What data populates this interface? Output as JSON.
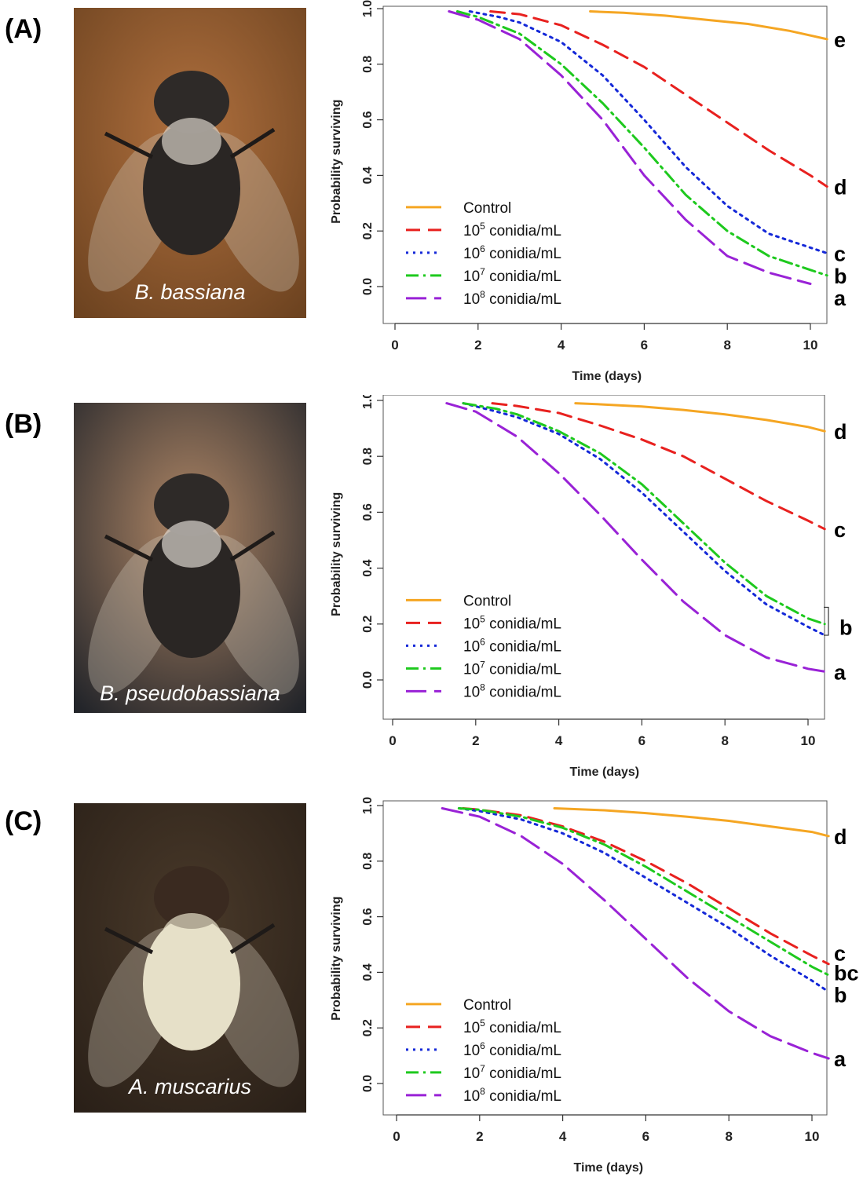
{
  "colors": {
    "control": "#F5A623",
    "c5": "#E8211F",
    "c6": "#1428D8",
    "c7": "#1EC91E",
    "c8": "#9922D6"
  },
  "panels": [
    {
      "label": "(A)",
      "caption": "B. bassiana",
      "photo_palette": [
        "#b0703e",
        "#6d4320",
        "#d8d2c8"
      ],
      "chart_data": {
        "type": "line",
        "xlabel": "Time (days)",
        "ylabel": "Probability surviving",
        "xlim": [
          0,
          10.4
        ],
        "ylim": [
          -0.14,
          1.02
        ],
        "xticks": [
          "0",
          "2",
          "4",
          "6",
          "8",
          "10"
        ],
        "yticks": [
          "0.0",
          "0.2",
          "0.4",
          "0.6",
          "0.8",
          "1.0"
        ],
        "legend_position": "bottom-left",
        "series": [
          {
            "name": "Control",
            "style": "solid",
            "color_key": "control",
            "x": [
              4.7,
              5.5,
              6.5,
              7.5,
              8.5,
              9.5,
              10.4
            ],
            "y": [
              0.99,
              0.985,
              0.975,
              0.96,
              0.945,
              0.92,
              0.89
            ]
          },
          {
            "name": "10",
            "sup": "5",
            "unit": " conidia/mL",
            "style": "dashed",
            "color_key": "c5",
            "x": [
              2.3,
              3,
              4,
              5,
              6,
              7,
              8,
              9,
              10,
              10.4
            ],
            "y": [
              0.99,
              0.98,
              0.94,
              0.87,
              0.79,
              0.69,
              0.59,
              0.49,
              0.4,
              0.36
            ]
          },
          {
            "name": "10",
            "sup": "6",
            "unit": " conidia/mL",
            "style": "dotted",
            "color_key": "c6",
            "x": [
              1.8,
              2.5,
              3,
              4,
              5,
              6,
              7,
              8,
              9,
              10,
              10.4
            ],
            "y": [
              0.99,
              0.97,
              0.95,
              0.88,
              0.76,
              0.6,
              0.43,
              0.29,
              0.19,
              0.14,
              0.12
            ]
          },
          {
            "name": "10",
            "sup": "7",
            "unit": " conidia/mL",
            "style": "dashdot",
            "color_key": "c7",
            "x": [
              1.5,
              2,
              3,
              4,
              5,
              6,
              7,
              8,
              9,
              10,
              10.4
            ],
            "y": [
              0.99,
              0.97,
              0.91,
              0.8,
              0.66,
              0.5,
              0.33,
              0.2,
              0.11,
              0.06,
              0.04
            ]
          },
          {
            "name": "10",
            "sup": "8",
            "unit": " conidia/mL",
            "style": "longdash",
            "color_key": "c8",
            "x": [
              1.3,
              2,
              3,
              4,
              5,
              6,
              7,
              8,
              9,
              10
            ],
            "y": [
              0.99,
              0.96,
              0.89,
              0.76,
              0.6,
              0.4,
              0.24,
              0.11,
              0.05,
              0.01
            ]
          }
        ],
        "significance_labels": [
          {
            "text": "e",
            "y": 0.89
          },
          {
            "text": "d",
            "y": 0.36
          },
          {
            "text": "c",
            "y": 0.12
          },
          {
            "text": "b",
            "y": 0.04
          },
          {
            "text": "a",
            "y": -0.04
          }
        ]
      }
    },
    {
      "label": "(B)",
      "caption": "B. pseudobassiana",
      "photo_palette": [
        "#b08766",
        "#23252a",
        "#dcd6ce"
      ],
      "chart_data": {
        "type": "line",
        "xlabel": "Time (days)",
        "ylabel": "Probability surviving",
        "xlim": [
          0,
          10.4
        ],
        "ylim": [
          -0.14,
          1.02
        ],
        "xticks": [
          "0",
          "2",
          "4",
          "6",
          "8",
          "10"
        ],
        "yticks": [
          "0.0",
          "0.2",
          "0.4",
          "0.6",
          "0.8",
          "1.0"
        ],
        "legend_position": "bottom-left",
        "series": [
          {
            "name": "Control",
            "style": "solid",
            "color_key": "control",
            "x": [
              4.4,
              5,
              6,
              7,
              8,
              9,
              10,
              10.4
            ],
            "y": [
              0.99,
              0.986,
              0.978,
              0.966,
              0.95,
              0.93,
              0.905,
              0.89
            ]
          },
          {
            "name": "10",
            "sup": "5",
            "unit": " conidia/mL",
            "style": "dashed",
            "color_key": "c5",
            "x": [
              2.4,
              3,
              4,
              5,
              6,
              7,
              8,
              9,
              10,
              10.4
            ],
            "y": [
              0.99,
              0.98,
              0.955,
              0.91,
              0.86,
              0.8,
              0.72,
              0.64,
              0.57,
              0.54
            ]
          },
          {
            "name": "10",
            "sup": "6",
            "unit": " conidia/mL",
            "style": "dotted",
            "color_key": "c6",
            "x": [
              1.7,
              2.5,
              3,
              4,
              5,
              6,
              7,
              8,
              9,
              10,
              10.4
            ],
            "y": [
              0.99,
              0.96,
              0.94,
              0.88,
              0.79,
              0.67,
              0.53,
              0.39,
              0.27,
              0.19,
              0.16
            ]
          },
          {
            "name": "10",
            "sup": "7",
            "unit": " conidia/mL",
            "style": "dashdot",
            "color_key": "c7",
            "x": [
              1.7,
              2.5,
              3,
              4,
              5,
              6,
              7,
              8,
              9,
              10,
              10.4
            ],
            "y": [
              0.99,
              0.97,
              0.95,
              0.89,
              0.81,
              0.7,
              0.56,
              0.42,
              0.3,
              0.22,
              0.2
            ]
          },
          {
            "name": "10",
            "sup": "8",
            "unit": " conidia/mL",
            "style": "longdash",
            "color_key": "c8",
            "x": [
              1.3,
              2,
              3,
              4,
              5,
              6,
              7,
              8,
              9,
              10,
              10.4
            ],
            "y": [
              0.99,
              0.96,
              0.87,
              0.74,
              0.59,
              0.43,
              0.28,
              0.16,
              0.08,
              0.04,
              0.03
            ]
          }
        ],
        "significance_labels": [
          {
            "text": "d",
            "y": 0.89
          },
          {
            "text": "c",
            "y": 0.54
          },
          {
            "text": "b",
            "y": 0.19,
            "bracket": [
              0.16,
              0.26
            ]
          },
          {
            "text": "a",
            "y": 0.03
          }
        ]
      }
    },
    {
      "label": "(C)",
      "caption": "A. muscarius",
      "photo_palette": [
        "#4a3a2a",
        "#2a2018",
        "#e6e0c8"
      ],
      "chart_data": {
        "type": "line",
        "xlabel": "Time (days)",
        "ylabel": "Probability surviving",
        "xlim": [
          0,
          10.4
        ],
        "ylim": [
          -0.14,
          1.02
        ],
        "xticks": [
          "0",
          "2",
          "4",
          "6",
          "8",
          "10"
        ],
        "yticks": [
          "0.0",
          "0.2",
          "0.4",
          "0.6",
          "0.8",
          "1.0"
        ],
        "legend_position": "bottom-left",
        "series": [
          {
            "name": "Control",
            "style": "solid",
            "color_key": "control",
            "x": [
              3.8,
              5,
              6,
              7,
              8,
              9,
              10,
              10.4
            ],
            "y": [
              0.99,
              0.983,
              0.973,
              0.96,
              0.945,
              0.925,
              0.905,
              0.89
            ]
          },
          {
            "name": "10",
            "sup": "5",
            "unit": " conidia/mL",
            "style": "dashed",
            "color_key": "c5",
            "x": [
              1.6,
              2,
              3,
              4,
              5,
              6,
              7,
              8,
              9,
              10,
              10.4
            ],
            "y": [
              0.99,
              0.985,
              0.965,
              0.925,
              0.87,
              0.8,
              0.72,
              0.63,
              0.54,
              0.46,
              0.43
            ]
          },
          {
            "name": "10",
            "sup": "6",
            "unit": " conidia/mL",
            "style": "dotted",
            "color_key": "c6",
            "x": [
              1.5,
              2,
              3,
              4,
              5,
              6,
              7,
              8,
              9,
              10,
              10.4
            ],
            "y": [
              0.99,
              0.98,
              0.95,
              0.9,
              0.83,
              0.74,
              0.65,
              0.56,
              0.46,
              0.37,
              0.33
            ]
          },
          {
            "name": "10",
            "sup": "7",
            "unit": " conidia/mL",
            "style": "dashdot",
            "color_key": "c7",
            "x": [
              1.5,
              2,
              3,
              4,
              5,
              6,
              7,
              8,
              9,
              10,
              10.4
            ],
            "y": [
              0.99,
              0.985,
              0.96,
              0.92,
              0.86,
              0.78,
              0.69,
              0.6,
              0.51,
              0.42,
              0.39
            ]
          },
          {
            "name": "10",
            "sup": "8",
            "unit": " conidia/mL",
            "style": "longdash",
            "color_key": "c8",
            "x": [
              1.1,
              2,
              3,
              4,
              5,
              6,
              7,
              8,
              9,
              10,
              10.4
            ],
            "y": [
              0.99,
              0.96,
              0.89,
              0.79,
              0.66,
              0.52,
              0.38,
              0.26,
              0.17,
              0.11,
              0.09
            ]
          }
        ],
        "significance_labels": [
          {
            "text": "d",
            "y": 0.89
          },
          {
            "text": "c",
            "y": 0.47
          },
          {
            "text": "bc",
            "y": 0.4
          },
          {
            "text": "b",
            "y": 0.32
          },
          {
            "text": "a",
            "y": 0.09
          }
        ]
      }
    }
  ]
}
